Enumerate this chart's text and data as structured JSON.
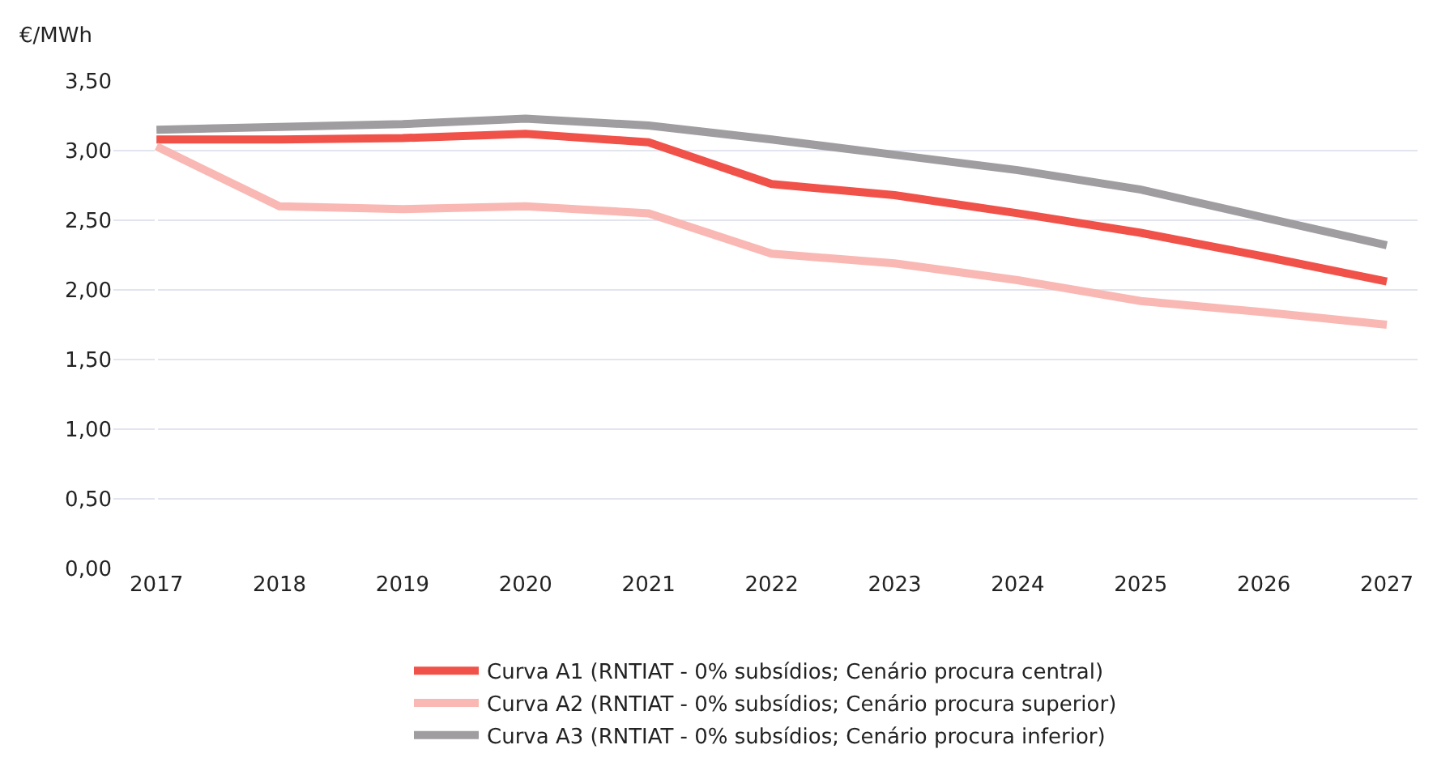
{
  "chart_data": {
    "type": "line",
    "ylabel": "€/MWh",
    "categories": [
      "2017",
      "2018",
      "2019",
      "2020",
      "2021",
      "2022",
      "2023",
      "2024",
      "2025",
      "2026",
      "2027"
    ],
    "series": [
      {
        "name": "Curva A1 (RNTIAT - 0% subsídios; Cenário procura central)",
        "color": "#f0524a",
        "values": [
          3.08,
          3.08,
          3.09,
          3.12,
          3.06,
          2.76,
          2.68,
          2.55,
          2.41,
          2.24,
          2.06
        ]
      },
      {
        "name": "Curva A2 (RNTIAT - 0% subsídios; Cenário procura superior)",
        "color": "#f9b8b3",
        "values": [
          3.03,
          2.6,
          2.58,
          2.6,
          2.55,
          2.26,
          2.19,
          2.07,
          1.92,
          1.84,
          1.75
        ]
      },
      {
        "name": "Curva A3 (RNTIAT - 0% subsídios; Cenário procura inferior)",
        "color": "#a09da1",
        "values": [
          3.15,
          3.17,
          3.19,
          3.23,
          3.18,
          3.08,
          2.97,
          2.86,
          2.72,
          2.52,
          2.32
        ]
      }
    ],
    "ylim": [
      0,
      3.5
    ],
    "yticks": [
      {
        "value": 0,
        "label": "0,00"
      },
      {
        "value": 0.5,
        "label": "0,50"
      },
      {
        "value": 1,
        "label": "1,00"
      },
      {
        "value": 1.5,
        "label": "1,50"
      },
      {
        "value": 2,
        "label": "2,00"
      },
      {
        "value": 2.5,
        "label": "2,50"
      },
      {
        "value": 3,
        "label": "3,00"
      },
      {
        "value": 3.5,
        "label": "3,50"
      }
    ],
    "grid": "y",
    "legend": "bottom",
    "marker": "none",
    "line_style": "solid"
  }
}
